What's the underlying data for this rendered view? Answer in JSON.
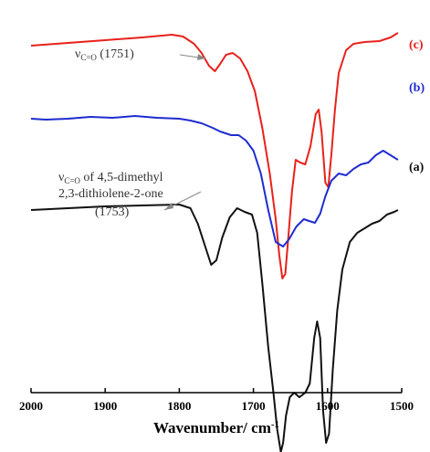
{
  "chart_data": {
    "type": "line",
    "title": "",
    "xlabel": "Wavenumber/ cm",
    "xlabel_sup": "-1",
    "ylabel": "",
    "xlim": [
      2000,
      1500
    ],
    "x_reversed": true,
    "x_ticks": [
      2000,
      1900,
      1800,
      1700,
      1600,
      1500
    ],
    "y_axis_visible": false,
    "grid": false,
    "legend": "none",
    "series": [
      {
        "name": "(c)",
        "color": "#e8211b",
        "offset": 380,
        "points": [
          [
            2000,
            0
          ],
          [
            1950,
            3
          ],
          [
            1900,
            6
          ],
          [
            1850,
            9
          ],
          [
            1810,
            12
          ],
          [
            1795,
            10
          ],
          [
            1780,
            2
          ],
          [
            1770,
            -8
          ],
          [
            1760,
            -22
          ],
          [
            1752,
            -28
          ],
          [
            1745,
            -20
          ],
          [
            1737,
            -10
          ],
          [
            1728,
            -8
          ],
          [
            1718,
            -14
          ],
          [
            1708,
            -28
          ],
          [
            1698,
            -50
          ],
          [
            1688,
            -90
          ],
          [
            1678,
            -140
          ],
          [
            1670,
            -190
          ],
          [
            1665,
            -230
          ],
          [
            1661,
            -255
          ],
          [
            1657,
            -250
          ],
          [
            1653,
            -210
          ],
          [
            1648,
            -160
          ],
          [
            1643,
            -125
          ],
          [
            1637,
            -128
          ],
          [
            1630,
            -130
          ],
          [
            1623,
            -110
          ],
          [
            1616,
            -75
          ],
          [
            1612,
            -70
          ],
          [
            1608,
            -95
          ],
          [
            1603,
            -150
          ],
          [
            1599,
            -155
          ],
          [
            1595,
            -120
          ],
          [
            1590,
            -70
          ],
          [
            1585,
            -30
          ],
          [
            1575,
            -5
          ],
          [
            1565,
            2
          ],
          [
            1550,
            4
          ],
          [
            1530,
            5
          ],
          [
            1515,
            9
          ],
          [
            1505,
            14
          ]
        ]
      },
      {
        "name": "(b)",
        "color": "#1f2ccf",
        "offset": 300,
        "points": [
          [
            2000,
            0
          ],
          [
            1980,
            -1
          ],
          [
            1950,
            0
          ],
          [
            1920,
            2
          ],
          [
            1890,
            1
          ],
          [
            1860,
            3
          ],
          [
            1830,
            1
          ],
          [
            1800,
            0
          ],
          [
            1785,
            -2
          ],
          [
            1770,
            -5
          ],
          [
            1755,
            -10
          ],
          [
            1745,
            -14
          ],
          [
            1730,
            -18
          ],
          [
            1720,
            -18
          ],
          [
            1710,
            -24
          ],
          [
            1700,
            -35
          ],
          [
            1690,
            -60
          ],
          [
            1680,
            -100
          ],
          [
            1670,
            -135
          ],
          [
            1660,
            -140
          ],
          [
            1652,
            -132
          ],
          [
            1642,
            -118
          ],
          [
            1632,
            -110
          ],
          [
            1625,
            -112
          ],
          [
            1617,
            -114
          ],
          [
            1610,
            -104
          ],
          [
            1603,
            -85
          ],
          [
            1595,
            -68
          ],
          [
            1585,
            -60
          ],
          [
            1575,
            -62
          ],
          [
            1565,
            -55
          ],
          [
            1555,
            -50
          ],
          [
            1545,
            -48
          ],
          [
            1535,
            -40
          ],
          [
            1525,
            -35
          ],
          [
            1515,
            -40
          ],
          [
            1505,
            -45
          ]
        ]
      },
      {
        "name": "(a)",
        "color": "#111111",
        "offset": 200,
        "points": [
          [
            2000,
            0
          ],
          [
            1950,
            2
          ],
          [
            1900,
            4
          ],
          [
            1850,
            5
          ],
          [
            1800,
            6
          ],
          [
            1785,
            2
          ],
          [
            1775,
            -15
          ],
          [
            1765,
            -40
          ],
          [
            1757,
            -60
          ],
          [
            1750,
            -55
          ],
          [
            1742,
            -30
          ],
          [
            1732,
            -8
          ],
          [
            1722,
            2
          ],
          [
            1712,
            -2
          ],
          [
            1702,
            -5
          ],
          [
            1695,
            -25
          ],
          [
            1688,
            -80
          ],
          [
            1680,
            -150
          ],
          [
            1673,
            -200
          ],
          [
            1668,
            -240
          ],
          [
            1663,
            -265
          ],
          [
            1660,
            -255
          ],
          [
            1656,
            -225
          ],
          [
            1651,
            -205
          ],
          [
            1645,
            -200
          ],
          [
            1638,
            -205
          ],
          [
            1630,
            -200
          ],
          [
            1624,
            -190
          ],
          [
            1618,
            -140
          ],
          [
            1614,
            -122
          ],
          [
            1610,
            -140
          ],
          [
            1606,
            -220
          ],
          [
            1602,
            -255
          ],
          [
            1598,
            -245
          ],
          [
            1593,
            -175
          ],
          [
            1587,
            -110
          ],
          [
            1580,
            -65
          ],
          [
            1570,
            -35
          ],
          [
            1560,
            -25
          ],
          [
            1550,
            -20
          ],
          [
            1540,
            -15
          ],
          [
            1530,
            -12
          ],
          [
            1520,
            -5
          ],
          [
            1510,
            -2
          ],
          [
            1505,
            0
          ]
        ]
      }
    ],
    "series_labels": [
      "(c)",
      "(b)",
      "(a)"
    ],
    "annotations": [
      {
        "text_nu": "ν",
        "text_sub": "C=O",
        "text_rest": " (1751)",
        "x": 1751
      },
      {
        "line1_nu": "ν",
        "line1_sub": "C=O",
        "line1_rest": " of 4,5-dimethyl",
        "line2": "2,3-dithiolene-2-one",
        "line3": "(1753)",
        "x": 1753
      }
    ]
  }
}
